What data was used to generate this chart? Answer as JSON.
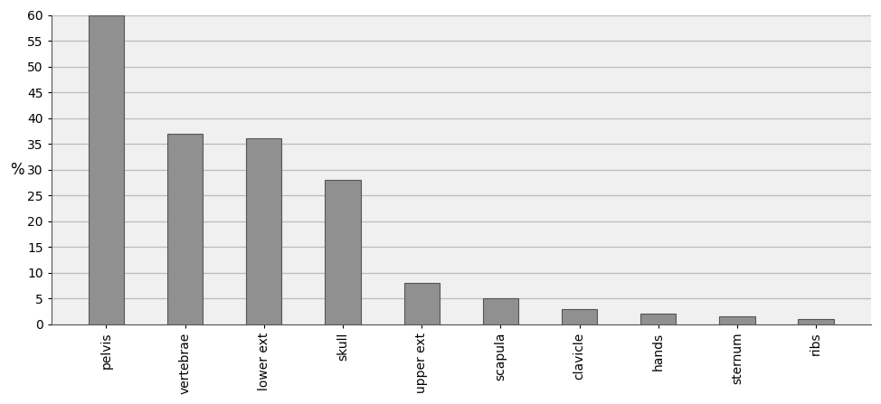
{
  "categories": [
    "pelvis",
    "vertebrae",
    "lower ext",
    "skull",
    "upper ext",
    "scapula",
    "clavicle",
    "hands",
    "sternum",
    "ribs"
  ],
  "values": [
    60,
    37,
    36,
    28,
    8,
    5,
    3,
    2,
    1.5,
    1
  ],
  "bar_color": "#909090",
  "bar_edge_color": "#555555",
  "ylabel": "%",
  "ylim": [
    0,
    60
  ],
  "yticks": [
    0,
    5,
    10,
    15,
    20,
    25,
    30,
    35,
    40,
    45,
    50,
    55,
    60
  ],
  "background_color": "#ffffff",
  "plot_bg_color": "#f0f0f0",
  "grid_color": "#bbbbbb",
  "bar_width": 0.45,
  "tick_label_fontsize": 10,
  "ylabel_fontsize": 12,
  "figsize": [
    9.74,
    4.47
  ],
  "dpi": 100
}
